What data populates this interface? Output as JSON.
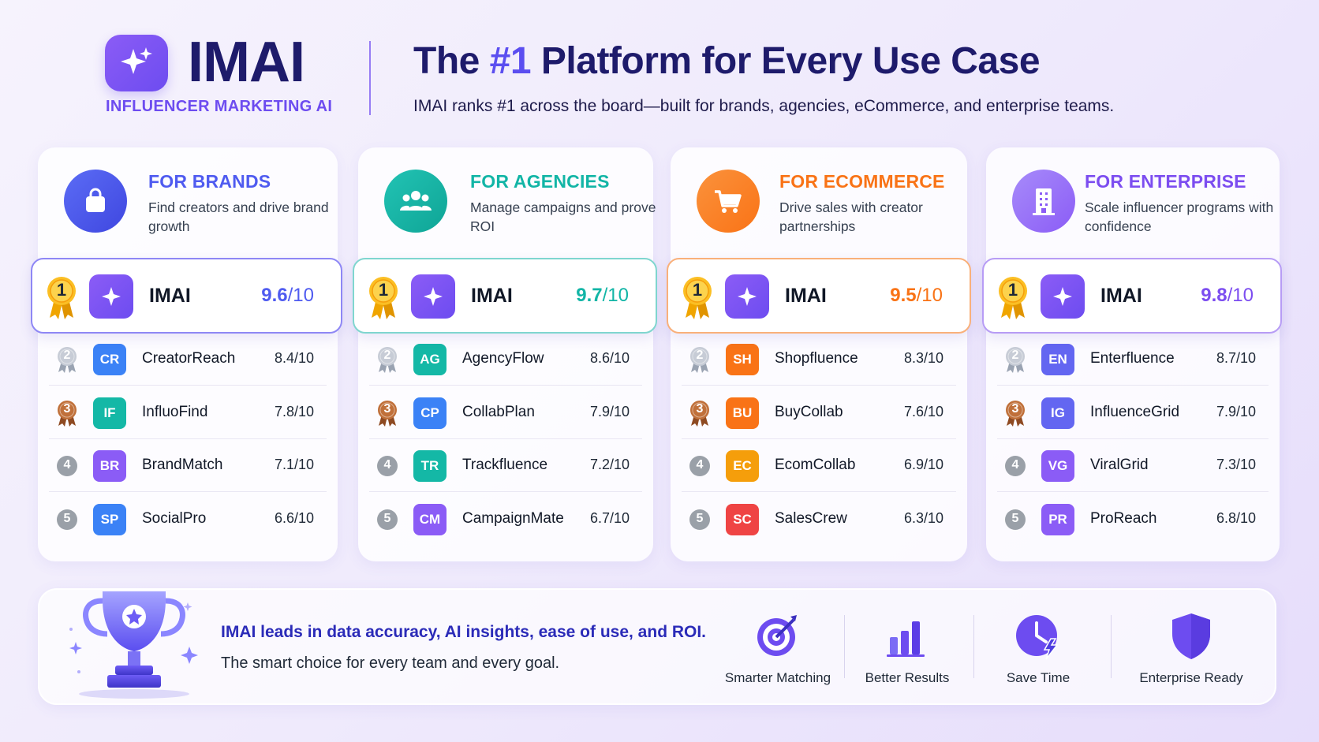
{
  "brand": {
    "name": "IMAI",
    "tagline": "INFLUENCER MARKETING AI"
  },
  "headline": {
    "pre": "The ",
    "accent": "#1",
    "post": " Platform for Every Use Case",
    "subtitle": "IMAI ranks #1 across the board—built for brands, agencies, eCommerce, and enterprise teams."
  },
  "colors": {
    "brands": "#4f5bf0",
    "agencies": "#12b5a6",
    "ecommerce": "#f97316",
    "enterprise": "#8b5cf6"
  },
  "categories": [
    {
      "title": "FOR BRANDS",
      "desc": "Find creators and drive brand growth",
      "icon": "shopping-bag-icon",
      "leader": {
        "name": "IMAI",
        "score": "9.6",
        "den": "/10"
      },
      "rows": [
        {
          "rank": "2",
          "abbr": "CR",
          "name": "CreatorReach",
          "score": "8.4/10"
        },
        {
          "rank": "3",
          "abbr": "IF",
          "name": "InfluoFind",
          "score": "7.8/10"
        },
        {
          "rank": "4",
          "abbr": "BR",
          "name": "BrandMatch",
          "score": "7.1/10"
        },
        {
          "rank": "5",
          "abbr": "SP",
          "name": "SocialPro",
          "score": "6.6/10"
        }
      ]
    },
    {
      "title": "FOR AGENCIES",
      "desc": "Manage campaigns and prove ROI",
      "icon": "team-icon",
      "leader": {
        "name": "IMAI",
        "score": "9.7",
        "den": "/10"
      },
      "rows": [
        {
          "rank": "2",
          "abbr": "AG",
          "name": "AgencyFlow",
          "score": "8.6/10"
        },
        {
          "rank": "3",
          "abbr": "CP",
          "name": "CollabPlan",
          "score": "7.9/10"
        },
        {
          "rank": "4",
          "abbr": "TR",
          "name": "Trackfluence",
          "score": "7.2/10"
        },
        {
          "rank": "5",
          "abbr": "CM",
          "name": "CampaignMate",
          "score": "6.7/10"
        }
      ]
    },
    {
      "title": "FOR ECOMMERCE",
      "desc": "Drive sales with creator partnerships",
      "icon": "shopping-cart-icon",
      "leader": {
        "name": "IMAI",
        "score": "9.5",
        "den": "/10"
      },
      "rows": [
        {
          "rank": "2",
          "abbr": "SH",
          "name": "Shopfluence",
          "score": "8.3/10"
        },
        {
          "rank": "3",
          "abbr": "BU",
          "name": "BuyCollab",
          "score": "7.6/10"
        },
        {
          "rank": "4",
          "abbr": "EC",
          "name": "EcomCollab",
          "score": "6.9/10"
        },
        {
          "rank": "5",
          "abbr": "SC",
          "name": "SalesCrew",
          "score": "6.3/10"
        }
      ]
    },
    {
      "title": "FOR ENTERPRISE",
      "desc": "Scale influencer programs with confidence",
      "icon": "building-icon",
      "leader": {
        "name": "IMAI",
        "score": "9.8",
        "den": "/10"
      },
      "rows": [
        {
          "rank": "2",
          "abbr": "EN",
          "name": "Enterfluence",
          "score": "8.7/10"
        },
        {
          "rank": "3",
          "abbr": "IG",
          "name": "InfluenceGrid",
          "score": "7.9/10"
        },
        {
          "rank": "4",
          "abbr": "VG",
          "name": "ViralGrid",
          "score": "7.3/10"
        },
        {
          "rank": "5",
          "abbr": "PR",
          "name": "ProReach",
          "score": "6.8/10"
        }
      ]
    }
  ],
  "leader_rank": "1",
  "banner": {
    "title": "IMAI leads in data accuracy, AI insights, ease of use, and ROI.",
    "subtitle": "The smart choice for every team and every goal.",
    "features": [
      {
        "label": "Smarter Matching",
        "icon": "target-icon"
      },
      {
        "label": "Better Results",
        "icon": "bar-chart-icon"
      },
      {
        "label": "Save Time",
        "icon": "clock-icon"
      },
      {
        "label": "Enterprise Ready",
        "icon": "shield-icon"
      }
    ]
  }
}
